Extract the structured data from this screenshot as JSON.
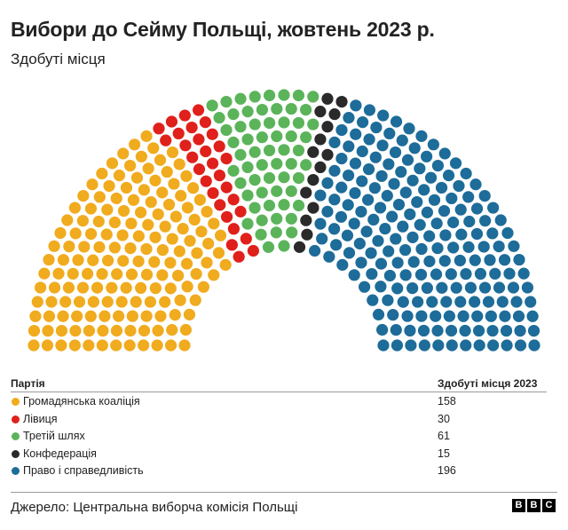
{
  "title": "Вибори до Сейму Польщі, жовтень 2023 р.",
  "subtitle": "Здобуті місця",
  "table": {
    "col_party": "Партія",
    "col_seats": "Здобуті місця 2023",
    "rows": [
      {
        "party": "Громадянська коаліція",
        "seats": "158",
        "color": "#f0ab1e"
      },
      {
        "party": "Лівиця",
        "seats": "30",
        "color": "#e0201b"
      },
      {
        "party": "Третій шлях",
        "seats": "61",
        "color": "#5bb45a"
      },
      {
        "party": "Конфедерація",
        "seats": "15",
        "color": "#2a2a2a"
      },
      {
        "party": "Право і справедливість",
        "seats": "196",
        "color": "#1d6c99"
      }
    ]
  },
  "source": "Джерело: Центральна виборча комісія Польщі",
  "logo": [
    "B",
    "B",
    "C"
  ],
  "chart_data": {
    "type": "parliament",
    "total_seats": 460,
    "series": [
      {
        "name": "Громадянська коаліція",
        "value": 158,
        "color": "#f0ab1e"
      },
      {
        "name": "Лівиця",
        "value": 30,
        "color": "#e0201b"
      },
      {
        "name": "Третій шлях",
        "value": 61,
        "color": "#5bb45a"
      },
      {
        "name": "Конфедерація",
        "value": 15,
        "color": "#2a2a2a"
      },
      {
        "name": "Право і справедливість",
        "value": 196,
        "color": "#1d6c99"
      }
    ]
  }
}
